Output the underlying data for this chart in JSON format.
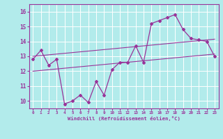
{
  "xlabel": "Windchill (Refroidissement éolien,°C)",
  "background_color": "#b2ebeb",
  "grid_color": "#ffffff",
  "line_color": "#993399",
  "hours": [
    0,
    1,
    2,
    3,
    4,
    5,
    6,
    7,
    8,
    9,
    10,
    11,
    12,
    13,
    14,
    15,
    16,
    17,
    18,
    19,
    20,
    21,
    22,
    23
  ],
  "windchill": [
    12.8,
    13.4,
    12.4,
    12.8,
    9.8,
    10.0,
    10.4,
    9.9,
    11.3,
    10.4,
    12.1,
    12.6,
    12.6,
    13.7,
    12.6,
    15.2,
    15.4,
    15.6,
    15.8,
    14.8,
    14.2,
    14.1,
    14.0,
    13.0
  ],
  "trend_upper": [
    13.0,
    13.05,
    13.1,
    13.15,
    13.2,
    13.25,
    13.3,
    13.35,
    13.4,
    13.45,
    13.5,
    13.55,
    13.6,
    13.65,
    13.7,
    13.75,
    13.8,
    13.85,
    13.9,
    13.95,
    14.0,
    14.05,
    14.1,
    14.15
  ],
  "trend_lower": [
    12.0,
    12.05,
    12.1,
    12.15,
    12.2,
    12.25,
    12.3,
    12.35,
    12.4,
    12.45,
    12.5,
    12.55,
    12.6,
    12.65,
    12.7,
    12.75,
    12.8,
    12.85,
    12.9,
    12.95,
    13.0,
    13.05,
    13.1,
    13.15
  ],
  "ylim": [
    9.5,
    16.5
  ],
  "yticks": [
    10,
    11,
    12,
    13,
    14,
    15,
    16
  ],
  "figwidth": 3.2,
  "figheight": 2.0,
  "dpi": 100
}
